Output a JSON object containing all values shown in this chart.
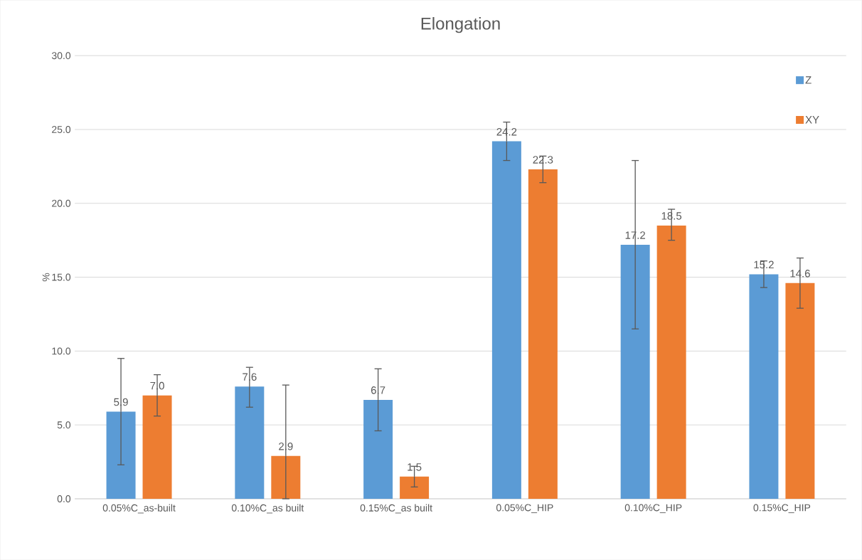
{
  "chart_data": {
    "type": "bar",
    "title": "Elongation",
    "ylabel": "%",
    "categories": [
      "0.05%C_as-built",
      "0.10%C_as built",
      "0.15%C_as built",
      "0.05%C_HIP",
      "0.10%C_HIP",
      "0.15%C_HIP"
    ],
    "series": [
      {
        "name": "Z",
        "color": "#5b9bd5",
        "values": [
          5.9,
          7.6,
          6.7,
          24.2,
          17.2,
          15.2
        ],
        "value_labels": [
          "5.9",
          "7.6",
          "6.7",
          "24.2",
          "17.2",
          "15.2"
        ],
        "errors": [
          [
            2.3,
            9.5
          ],
          [
            6.2,
            8.9
          ],
          [
            4.6,
            8.8
          ],
          [
            22.9,
            25.5
          ],
          [
            11.5,
            22.9
          ],
          [
            14.3,
            16.1
          ]
        ]
      },
      {
        "name": "XY",
        "color": "#ed7d31",
        "values": [
          7.0,
          2.9,
          1.5,
          22.3,
          18.5,
          14.6
        ],
        "value_labels": [
          "7.0",
          "2.9",
          "1.5",
          "22.3",
          "18.5",
          "14.6"
        ],
        "errors": [
          [
            5.6,
            8.4
          ],
          [
            0.0,
            7.7
          ],
          [
            0.8,
            2.2
          ],
          [
            21.4,
            23.2
          ],
          [
            17.5,
            19.6
          ],
          [
            12.9,
            16.3
          ]
        ]
      }
    ],
    "ylim": [
      0,
      30
    ],
    "yticks": [
      {
        "value": 0,
        "label": "0.0"
      },
      {
        "value": 5,
        "label": "5.0"
      },
      {
        "value": 10,
        "label": "10.0"
      },
      {
        "value": 15,
        "label": "15.0"
      },
      {
        "value": 20,
        "label": "20.0"
      },
      {
        "value": 25,
        "label": "25.0"
      },
      {
        "value": 30,
        "label": "30.0"
      }
    ],
    "grid": "y",
    "legend": "top right"
  }
}
